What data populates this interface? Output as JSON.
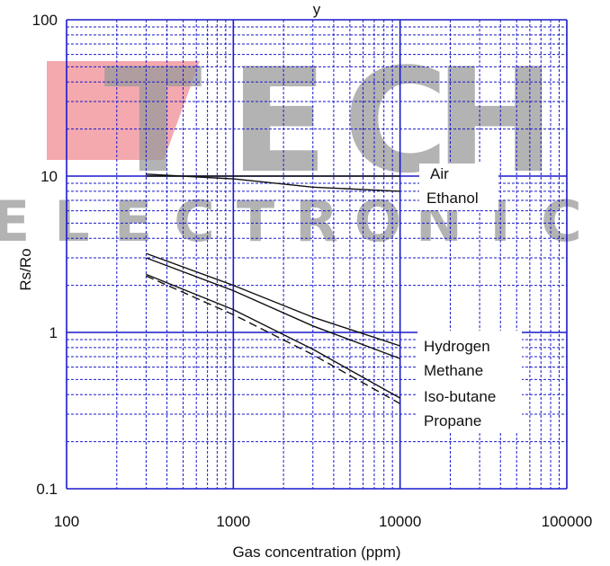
{
  "chart_data": {
    "type": "line",
    "title_fragment": "y",
    "xlabel": "Gas concentration (ppm)",
    "ylabel": "Rs/Ro",
    "xscale": "log",
    "yscale": "log",
    "xlim": [
      100,
      100000
    ],
    "ylim": [
      0.1,
      100
    ],
    "x_ticks": [
      "100",
      "1000",
      "10000",
      "100000"
    ],
    "y_ticks": [
      "0.1",
      "1",
      "10",
      "100"
    ],
    "grid": true,
    "series": [
      {
        "name": "Air",
        "style": "solid",
        "x": [
          300,
          10000
        ],
        "y": [
          10.0,
          10.0
        ]
      },
      {
        "name": "Ethanol",
        "style": "solid",
        "x": [
          300,
          1000,
          3000,
          10000
        ],
        "y": [
          10.3,
          9.6,
          8.5,
          8.0
        ]
      },
      {
        "name": "Hydrogen",
        "style": "solid",
        "x": [
          300,
          1000,
          3000,
          10000
        ],
        "y": [
          3.2,
          2.0,
          1.25,
          0.82
        ]
      },
      {
        "name": "Methane",
        "style": "solid",
        "x": [
          300,
          1000,
          3000,
          10000
        ],
        "y": [
          3.0,
          1.85,
          1.1,
          0.68
        ]
      },
      {
        "name": "Iso-butane",
        "style": "solid",
        "x": [
          300,
          1000,
          3000,
          10000
        ],
        "y": [
          2.35,
          1.4,
          0.78,
          0.38
        ]
      },
      {
        "name": "Propane",
        "style": "dashed",
        "x": [
          300,
          1000,
          3000,
          10000
        ],
        "y": [
          2.3,
          1.3,
          0.72,
          0.35
        ]
      }
    ]
  },
  "watermark": {
    "big": "TECH",
    "small": [
      "E",
      "L",
      "E",
      "C",
      "T",
      "R",
      "O",
      "N",
      "I",
      "C"
    ]
  },
  "colors": {
    "grid": "#1a1acc",
    "line": "#111111",
    "watermark": "#9a9a9a"
  }
}
